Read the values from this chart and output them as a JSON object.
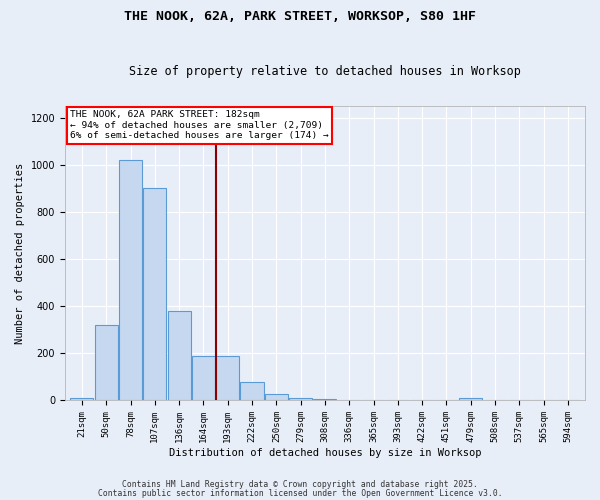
{
  "title": "THE NOOK, 62A, PARK STREET, WORKSOP, S80 1HF",
  "subtitle": "Size of property relative to detached houses in Worksop",
  "xlabel": "Distribution of detached houses by size in Worksop",
  "ylabel": "Number of detached properties",
  "bar_color": "#c5d8f0",
  "bar_edge_color": "#5b9bd5",
  "background_color": "#e8eef8",
  "grid_color": "#ffffff",
  "red_line_x": 5.5,
  "annotation_title": "THE NOOK, 62A PARK STREET: 182sqm",
  "annotation_line1": "← 94% of detached houses are smaller (2,709)",
  "annotation_line2": "6% of semi-detached houses are larger (174) →",
  "categories": [
    "21sqm",
    "50sqm",
    "78sqm",
    "107sqm",
    "136sqm",
    "164sqm",
    "193sqm",
    "222sqm",
    "250sqm",
    "279sqm",
    "308sqm",
    "336sqm",
    "365sqm",
    "393sqm",
    "422sqm",
    "451sqm",
    "479sqm",
    "508sqm",
    "537sqm",
    "565sqm",
    "594sqm"
  ],
  "values": [
    10,
    320,
    1020,
    900,
    380,
    185,
    185,
    75,
    25,
    10,
    5,
    2,
    0,
    0,
    0,
    0,
    10,
    0,
    0,
    0,
    0
  ],
  "ylim": [
    0,
    1250
  ],
  "yticks": [
    0,
    200,
    400,
    600,
    800,
    1000,
    1200
  ],
  "footer1": "Contains HM Land Registry data © Crown copyright and database right 2025.",
  "footer2": "Contains public sector information licensed under the Open Government Licence v3.0."
}
